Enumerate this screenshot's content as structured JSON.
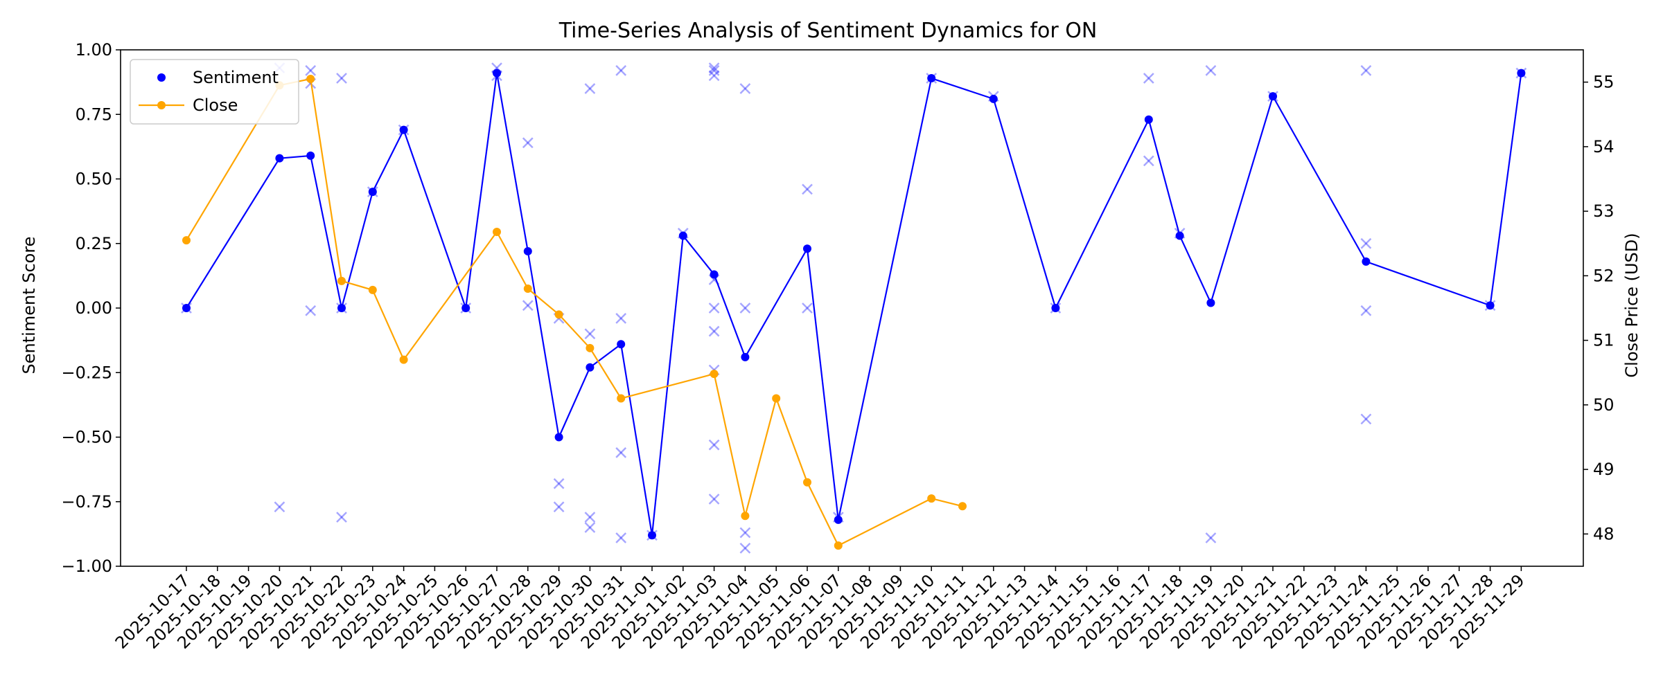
{
  "chart_data": {
    "type": "line",
    "title": "Time-Series Analysis of Sentiment Dynamics for ON",
    "xlabel": "",
    "ylabel": "Sentiment Score",
    "y2label": "Close Price (USD)",
    "ylim": [
      -1.0,
      1.0
    ],
    "y2lim": [
      47.5,
      55.5
    ],
    "grid": false,
    "legend_position": "top-left",
    "dates": [
      "2025-10-17",
      "2025-10-18",
      "2025-10-19",
      "2025-10-20",
      "2025-10-21",
      "2025-10-22",
      "2025-10-23",
      "2025-10-24",
      "2025-10-25",
      "2025-10-26",
      "2025-10-27",
      "2025-10-28",
      "2025-10-29",
      "2025-10-30",
      "2025-10-31",
      "2025-11-01",
      "2025-11-02",
      "2025-11-03",
      "2025-11-04",
      "2025-11-05",
      "2025-11-06",
      "2025-11-07",
      "2025-11-08",
      "2025-11-09",
      "2025-11-10",
      "2025-11-11",
      "2025-11-12",
      "2025-11-13",
      "2025-11-14",
      "2025-11-15",
      "2025-11-16",
      "2025-11-17",
      "2025-11-18",
      "2025-11-19",
      "2025-11-20",
      "2025-11-21",
      "2025-11-22",
      "2025-11-23",
      "2025-11-24",
      "2025-11-25",
      "2025-11-26",
      "2025-11-27",
      "2025-11-28",
      "2025-11-29"
    ],
    "y_ticks": [
      "1.00",
      "0.75",
      "0.50",
      "0.25",
      "0.00",
      "−0.25",
      "−0.50",
      "−0.75",
      "−1.00"
    ],
    "y2_ticks": [
      "55",
      "54",
      "53",
      "52",
      "51",
      "50",
      "49",
      "48"
    ],
    "series": [
      {
        "name": "Sentiment",
        "color": "#0000ff",
        "axis": "left",
        "points": [
          {
            "x": "2025-10-17",
            "y": 0.0
          },
          {
            "x": "2025-10-20",
            "y": 0.58
          },
          {
            "x": "2025-10-21",
            "y": 0.59
          },
          {
            "x": "2025-10-22",
            "y": 0.0
          },
          {
            "x": "2025-10-23",
            "y": 0.45
          },
          {
            "x": "2025-10-24",
            "y": 0.69
          },
          {
            "x": "2025-10-26",
            "y": 0.0
          },
          {
            "x": "2025-10-27",
            "y": 0.91
          },
          {
            "x": "2025-10-28",
            "y": 0.22
          },
          {
            "x": "2025-10-29",
            "y": -0.5
          },
          {
            "x": "2025-10-30",
            "y": -0.23
          },
          {
            "x": "2025-10-31",
            "y": -0.14
          },
          {
            "x": "2025-11-01",
            "y": -0.88
          },
          {
            "x": "2025-11-02",
            "y": 0.28
          },
          {
            "x": "2025-11-03",
            "y": 0.13
          },
          {
            "x": "2025-11-04",
            "y": -0.19
          },
          {
            "x": "2025-11-06",
            "y": 0.23
          },
          {
            "x": "2025-11-07",
            "y": -0.82
          },
          {
            "x": "2025-11-10",
            "y": 0.89
          },
          {
            "x": "2025-11-12",
            "y": 0.81
          },
          {
            "x": "2025-11-14",
            "y": 0.0
          },
          {
            "x": "2025-11-17",
            "y": 0.73
          },
          {
            "x": "2025-11-18",
            "y": 0.28
          },
          {
            "x": "2025-11-19",
            "y": 0.02
          },
          {
            "x": "2025-11-21",
            "y": 0.82
          },
          {
            "x": "2025-11-24",
            "y": 0.18
          },
          {
            "x": "2025-11-28",
            "y": 0.01
          },
          {
            "x": "2025-11-29",
            "y": 0.91
          }
        ]
      },
      {
        "name": "Close",
        "color": "#ffa500",
        "axis": "right",
        "points": [
          {
            "x": "2025-10-17",
            "y": 52.55
          },
          {
            "x": "2025-10-20",
            "y": 54.95
          },
          {
            "x": "2025-10-21",
            "y": 55.05
          },
          {
            "x": "2025-10-22",
            "y": 51.92
          },
          {
            "x": "2025-10-23",
            "y": 51.78
          },
          {
            "x": "2025-10-24",
            "y": 50.7
          },
          {
            "x": "2025-10-27",
            "y": 52.68
          },
          {
            "x": "2025-10-28",
            "y": 51.8
          },
          {
            "x": "2025-10-29",
            "y": 51.4
          },
          {
            "x": "2025-10-30",
            "y": 50.88
          },
          {
            "x": "2025-10-31",
            "y": 50.1
          },
          {
            "x": "2025-11-03",
            "y": 50.48
          },
          {
            "x": "2025-11-04",
            "y": 48.28
          },
          {
            "x": "2025-11-05",
            "y": 50.1
          },
          {
            "x": "2025-11-06",
            "y": 48.8
          },
          {
            "x": "2025-11-07",
            "y": 47.82
          },
          {
            "x": "2025-11-10",
            "y": 48.55
          },
          {
            "x": "2025-11-11",
            "y": 48.43
          }
        ]
      }
    ],
    "individual_scores": {
      "color": "#0000ff",
      "marker": "x",
      "points": [
        {
          "x": "2025-10-17",
          "y": 0.0
        },
        {
          "x": "2025-10-20",
          "y": 0.93
        },
        {
          "x": "2025-10-20",
          "y": -0.77
        },
        {
          "x": "2025-10-21",
          "y": 0.92
        },
        {
          "x": "2025-10-21",
          "y": 0.87
        },
        {
          "x": "2025-10-21",
          "y": -0.01
        },
        {
          "x": "2025-10-22",
          "y": 0.89
        },
        {
          "x": "2025-10-22",
          "y": 0.0
        },
        {
          "x": "2025-10-22",
          "y": -0.81
        },
        {
          "x": "2025-10-23",
          "y": 0.45
        },
        {
          "x": "2025-10-24",
          "y": 0.69
        },
        {
          "x": "2025-10-26",
          "y": 0.0
        },
        {
          "x": "2025-10-27",
          "y": 0.93
        },
        {
          "x": "2025-10-27",
          "y": 0.9
        },
        {
          "x": "2025-10-28",
          "y": 0.64
        },
        {
          "x": "2025-10-28",
          "y": 0.01
        },
        {
          "x": "2025-10-29",
          "y": -0.04
        },
        {
          "x": "2025-10-29",
          "y": -0.68
        },
        {
          "x": "2025-10-29",
          "y": -0.77
        },
        {
          "x": "2025-10-30",
          "y": 0.85
        },
        {
          "x": "2025-10-30",
          "y": -0.1
        },
        {
          "x": "2025-10-30",
          "y": -0.81
        },
        {
          "x": "2025-10-30",
          "y": -0.85
        },
        {
          "x": "2025-10-31",
          "y": 0.92
        },
        {
          "x": "2025-10-31",
          "y": -0.04
        },
        {
          "x": "2025-10-31",
          "y": -0.56
        },
        {
          "x": "2025-10-31",
          "y": -0.89
        },
        {
          "x": "2025-11-01",
          "y": -0.88
        },
        {
          "x": "2025-11-02",
          "y": 0.29
        },
        {
          "x": "2025-11-03",
          "y": 0.93
        },
        {
          "x": "2025-11-03",
          "y": 0.92
        },
        {
          "x": "2025-11-03",
          "y": 0.9
        },
        {
          "x": "2025-11-03",
          "y": 0.11
        },
        {
          "x": "2025-11-03",
          "y": 0.0
        },
        {
          "x": "2025-11-03",
          "y": -0.09
        },
        {
          "x": "2025-11-03",
          "y": -0.24
        },
        {
          "x": "2025-11-03",
          "y": -0.53
        },
        {
          "x": "2025-11-03",
          "y": -0.74
        },
        {
          "x": "2025-11-04",
          "y": 0.85
        },
        {
          "x": "2025-11-04",
          "y": 0.0
        },
        {
          "x": "2025-11-04",
          "y": -0.87
        },
        {
          "x": "2025-11-04",
          "y": -0.93
        },
        {
          "x": "2025-11-06",
          "y": 0.46
        },
        {
          "x": "2025-11-06",
          "y": 0.0
        },
        {
          "x": "2025-11-07",
          "y": -0.81
        },
        {
          "x": "2025-11-10",
          "y": 0.89
        },
        {
          "x": "2025-11-12",
          "y": 0.82
        },
        {
          "x": "2025-11-14",
          "y": 0.0
        },
        {
          "x": "2025-11-17",
          "y": 0.89
        },
        {
          "x": "2025-11-17",
          "y": 0.57
        },
        {
          "x": "2025-11-18",
          "y": 0.29
        },
        {
          "x": "2025-11-19",
          "y": 0.92
        },
        {
          "x": "2025-11-19",
          "y": -0.89
        },
        {
          "x": "2025-11-21",
          "y": 0.82
        },
        {
          "x": "2025-11-24",
          "y": 0.92
        },
        {
          "x": "2025-11-24",
          "y": 0.25
        },
        {
          "x": "2025-11-24",
          "y": -0.01
        },
        {
          "x": "2025-11-24",
          "y": -0.43
        },
        {
          "x": "2025-11-28",
          "y": 0.01
        },
        {
          "x": "2025-11-29",
          "y": 0.91
        }
      ]
    }
  }
}
